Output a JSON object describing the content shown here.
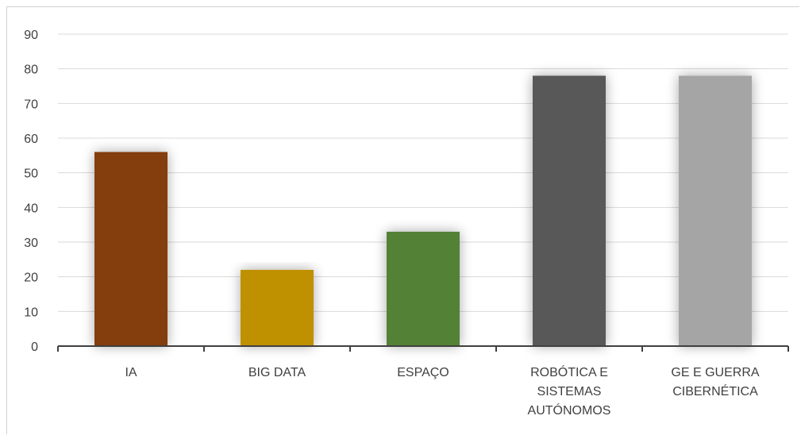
{
  "chart_data": {
    "type": "bar",
    "categories": [
      [
        "IA"
      ],
      [
        "BIG DATA"
      ],
      [
        "ESPAÇO"
      ],
      [
        "ROBÓTICA E",
        "SISTEMAS",
        "AUTÓNOMOS"
      ],
      [
        "GE E GUERRA",
        "CIBERNÉTICA"
      ]
    ],
    "values": [
      56,
      22,
      33,
      78,
      78
    ],
    "colors": [
      "#843c0c",
      "#bf9000",
      "#538135",
      "#595959",
      "#a5a5a5"
    ],
    "ylim": [
      0,
      90
    ],
    "yticks": [
      "0",
      "10",
      "20",
      "30",
      "40",
      "50",
      "60",
      "70",
      "80",
      "90"
    ],
    "grid": true,
    "legend": "none",
    "title": "",
    "xlabel": "",
    "ylabel": ""
  }
}
